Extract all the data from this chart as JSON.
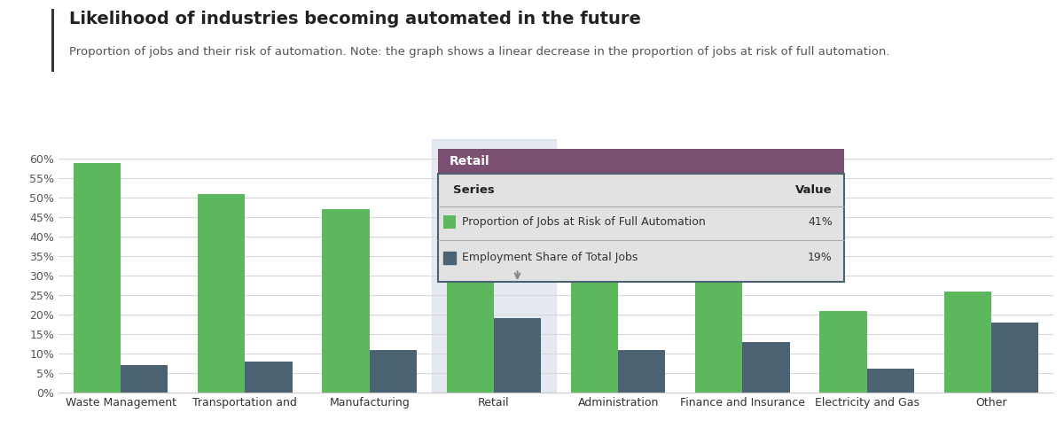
{
  "category_labels": [
    "Waste Management",
    "Transportation and",
    "Manufacturing",
    "Retail",
    "Administration",
    "Finance and Insurance",
    "Electricity and Gas",
    "Other"
  ],
  "automation_risk": [
    0.59,
    0.51,
    0.47,
    0.41,
    0.31,
    0.29,
    0.21,
    0.26
  ],
  "employment_share": [
    0.07,
    0.08,
    0.11,
    0.19,
    0.11,
    0.13,
    0.06,
    0.18
  ],
  "green_color": "#5cb85c",
  "teal_color": "#4a6272",
  "background_color": "#ffffff",
  "grid_color": "#d8d8d8",
  "title": "Likelihood of industries becoming automated in the future",
  "subtitle": "Proportion of jobs and their risk of automation. Note: the graph shows a linear decrease in the proportion of jobs at risk of full automation.",
  "title_fontsize": 14,
  "subtitle_fontsize": 9.5,
  "ylim": [
    0,
    0.65
  ],
  "yticks": [
    0.0,
    0.05,
    0.1,
    0.15,
    0.2,
    0.25,
    0.3,
    0.35,
    0.4,
    0.45,
    0.5,
    0.55,
    0.6
  ],
  "bar_width": 0.38,
  "tooltip_col_idx": 3,
  "tooltip_title": "Retail",
  "tooltip_title_bg": "#7b4f72",
  "tooltip_title_color": "#ffffff",
  "tooltip_series1": "Proportion of Jobs at Risk of Full Automation",
  "tooltip_value1": "41%",
  "tooltip_series2": "Employment Share of Total Jobs",
  "tooltip_value2": "19%",
  "tooltip_bg": "#e2e2e2",
  "tooltip_border": "#4a6272",
  "highlight_bg": "#d0d8e8",
  "accent_bar_color": "#333333",
  "left_border_color": "#333333"
}
